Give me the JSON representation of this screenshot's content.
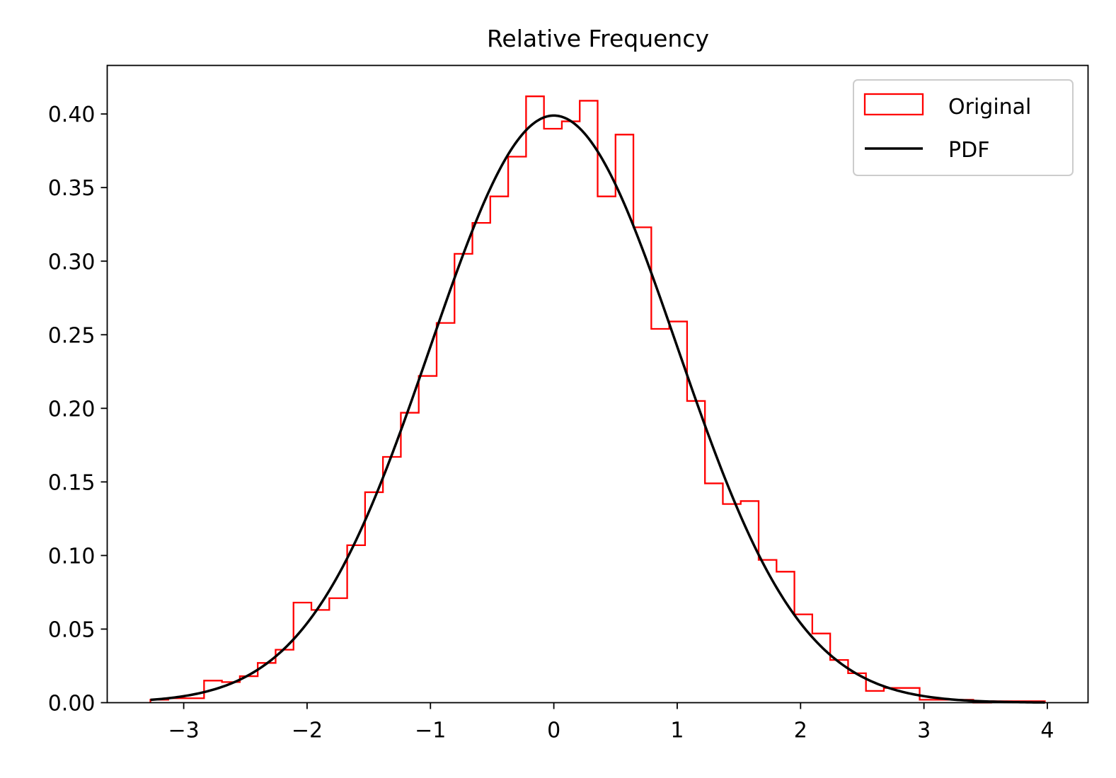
{
  "chart_data": {
    "type": "histogram",
    "title": "Relative Frequency",
    "xlabel": "",
    "ylabel": "",
    "xlim": [
      -3.62,
      4.33
    ],
    "ylim": [
      0,
      0.433
    ],
    "x_ticks": [
      -3,
      -2,
      -1,
      0,
      1,
      2,
      3,
      4
    ],
    "x_tick_labels": [
      "−3",
      "−2",
      "−1",
      "0",
      "1",
      "2",
      "3",
      "4"
    ],
    "y_ticks": [
      0,
      0.05,
      0.1,
      0.15,
      0.2,
      0.25,
      0.3,
      0.35,
      0.4
    ],
    "y_tick_labels": [
      "0.00",
      "0.05",
      "0.10",
      "0.15",
      "0.20",
      "0.25",
      "0.30",
      "0.35",
      "0.40"
    ],
    "grid": false,
    "legend_position": "top-right",
    "series": [
      {
        "name": "Original",
        "kind": "step-histogram",
        "color": "#ff0000",
        "bin_edges": [
          -3.27,
          -3.125,
          -2.98,
          -2.835,
          -2.69,
          -2.545,
          -2.4,
          -2.255,
          -2.11,
          -1.965,
          -1.82,
          -1.675,
          -1.53,
          -1.385,
          -1.24,
          -1.095,
          -0.95,
          -0.805,
          -0.66,
          -0.515,
          -0.37,
          -0.225,
          -0.08,
          0.065,
          0.21,
          0.355,
          0.5,
          0.645,
          0.79,
          0.935,
          1.08,
          1.225,
          1.37,
          1.515,
          1.66,
          1.805,
          1.95,
          2.095,
          2.24,
          2.385,
          2.53,
          2.675,
          2.82,
          2.965,
          3.11,
          3.255,
          3.4,
          3.545,
          3.69,
          3.835,
          3.98
        ],
        "values": [
          0.002,
          0.003,
          0.003,
          0.015,
          0.014,
          0.018,
          0.027,
          0.036,
          0.068,
          0.063,
          0.071,
          0.107,
          0.143,
          0.167,
          0.197,
          0.222,
          0.258,
          0.305,
          0.326,
          0.344,
          0.371,
          0.412,
          0.39,
          0.395,
          0.409,
          0.344,
          0.386,
          0.323,
          0.254,
          0.259,
          0.205,
          0.149,
          0.135,
          0.137,
          0.097,
          0.089,
          0.06,
          0.047,
          0.029,
          0.02,
          0.008,
          0.01,
          0.01,
          0.002,
          0.002,
          0.002,
          0.0,
          0.001,
          0.001,
          0.001
        ]
      },
      {
        "name": "PDF",
        "kind": "line",
        "color": "#000000",
        "function": "normal",
        "mean": 0,
        "std": 1,
        "x_range": [
          -3.27,
          3.98
        ]
      }
    ]
  }
}
